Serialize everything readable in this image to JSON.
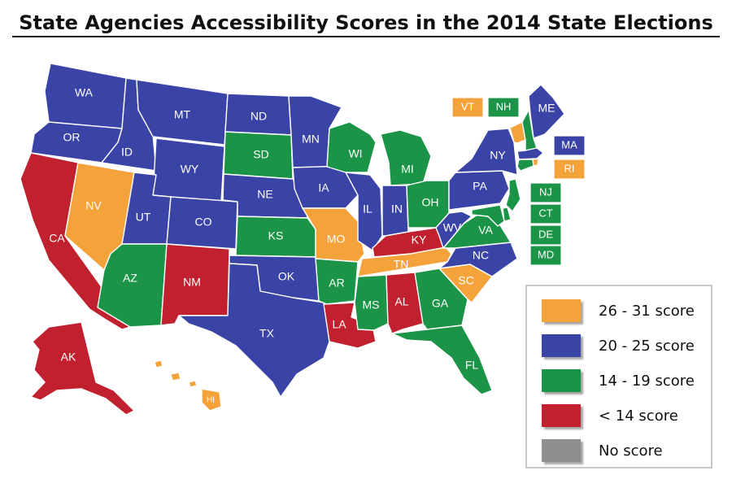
{
  "title": "State Agencies Accessibility Scores in the 2014 State Elections",
  "colors": {
    "orange": "#F4A23A",
    "blue": "#3A43A6",
    "green": "#1B9447",
    "red": "#C1202E",
    "gray": "#8E8E8E"
  },
  "legend": [
    {
      "label": "26 - 31 score",
      "color": "#F4A23A"
    },
    {
      "label": "20 - 25 score",
      "color": "#3A43A6"
    },
    {
      "label": "14 - 19 score",
      "color": "#1B9447"
    },
    {
      "label": "< 14 score",
      "color": "#C1202E"
    },
    {
      "label": "No score",
      "color": "#8E8E8E"
    }
  ],
  "states": {
    "WA": {
      "label": "WA",
      "category": "blue"
    },
    "OR": {
      "label": "OR",
      "category": "blue"
    },
    "CA": {
      "label": "CA",
      "category": "red"
    },
    "ID": {
      "label": "ID",
      "category": "blue"
    },
    "NV": {
      "label": "NV",
      "category": "orange"
    },
    "MT": {
      "label": "MT",
      "category": "blue"
    },
    "WY": {
      "label": "WY",
      "category": "blue"
    },
    "UT": {
      "label": "UT",
      "category": "blue"
    },
    "AZ": {
      "label": "AZ",
      "category": "green"
    },
    "CO": {
      "label": "CO",
      "category": "blue"
    },
    "NM": {
      "label": "NM",
      "category": "red"
    },
    "ND": {
      "label": "ND",
      "category": "blue"
    },
    "SD": {
      "label": "SD",
      "category": "green"
    },
    "NE": {
      "label": "NE",
      "category": "blue"
    },
    "KS": {
      "label": "KS",
      "category": "green"
    },
    "OK": {
      "label": "OK",
      "category": "blue"
    },
    "TX": {
      "label": "TX",
      "category": "blue"
    },
    "MN": {
      "label": "MN",
      "category": "blue"
    },
    "IA": {
      "label": "IA",
      "category": "blue"
    },
    "MO": {
      "label": "MO",
      "category": "orange"
    },
    "AR": {
      "label": "AR",
      "category": "green"
    },
    "LA": {
      "label": "LA",
      "category": "red"
    },
    "WI": {
      "label": "WI",
      "category": "green"
    },
    "IL": {
      "label": "IL",
      "category": "blue"
    },
    "MI": {
      "label": "MI",
      "category": "green"
    },
    "IN": {
      "label": "IN",
      "category": "blue"
    },
    "OH": {
      "label": "OH",
      "category": "green"
    },
    "KY": {
      "label": "KY",
      "category": "red"
    },
    "TN": {
      "label": "TN",
      "category": "orange"
    },
    "MS": {
      "label": "MS",
      "category": "green"
    },
    "AL": {
      "label": "AL",
      "category": "red"
    },
    "GA": {
      "label": "GA",
      "category": "green"
    },
    "FL": {
      "label": "FL",
      "category": "green"
    },
    "SC": {
      "label": "SC",
      "category": "orange"
    },
    "NC": {
      "label": "NC",
      "category": "blue"
    },
    "VA": {
      "label": "VA",
      "category": "green"
    },
    "WV": {
      "label": "WV",
      "category": "blue"
    },
    "PA": {
      "label": "PA",
      "category": "blue"
    },
    "NY": {
      "label": "NY",
      "category": "blue"
    },
    "ME": {
      "label": "ME",
      "category": "blue"
    },
    "VT": {
      "label": "VT",
      "category": "orange"
    },
    "NH": {
      "label": "NH",
      "category": "green"
    },
    "MA": {
      "label": "MA",
      "category": "blue"
    },
    "RI": {
      "label": "RI",
      "category": "orange"
    },
    "CT": {
      "label": "CT",
      "category": "green"
    },
    "NJ": {
      "label": "NJ",
      "category": "green"
    },
    "DE": {
      "label": "DE",
      "category": "green"
    },
    "MD": {
      "label": "MD",
      "category": "green"
    },
    "AK": {
      "label": "AK",
      "category": "red"
    },
    "HI": {
      "label": "HI",
      "category": "orange"
    }
  }
}
